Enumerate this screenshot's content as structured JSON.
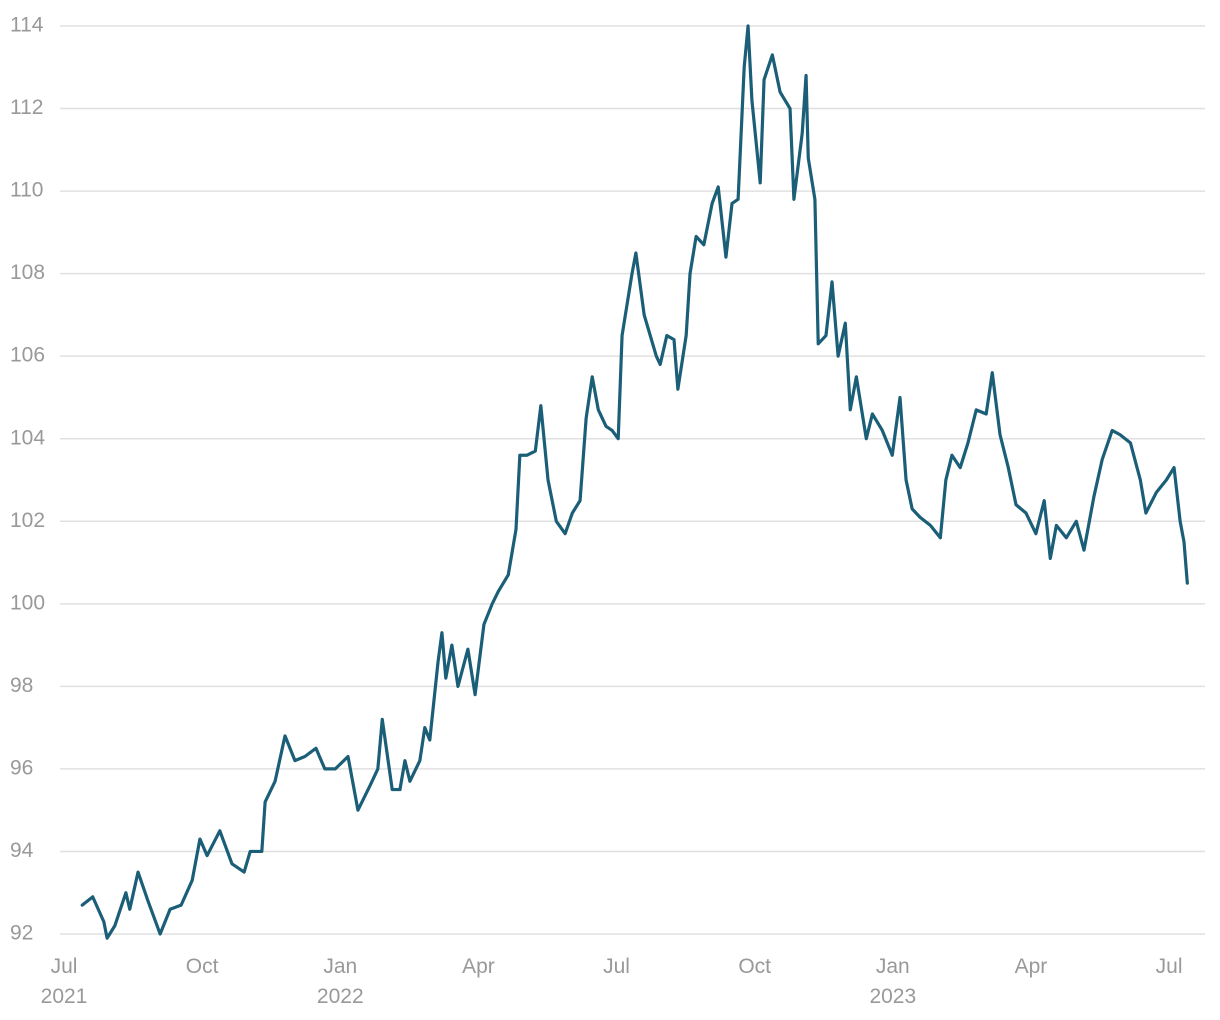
{
  "chart_data": {
    "type": "line",
    "x": [
      2021.533,
      2021.552,
      2021.572,
      2021.578,
      2021.592,
      2021.612,
      2021.619,
      2021.634,
      2021.652,
      2021.674,
      2021.692,
      2021.712,
      2021.732,
      2021.746,
      2021.759,
      2021.782,
      2021.804,
      2021.826,
      2021.837,
      2021.858,
      2021.864,
      2021.882,
      2021.9,
      2021.918,
      2021.936,
      2021.956,
      2021.972,
      2021.991,
      2022.014,
      2022.032,
      2022.054,
      2022.068,
      2022.076,
      2022.094,
      2022.108,
      2022.117,
      2022.126,
      2022.144,
      2022.153,
      2022.162,
      2022.177,
      2022.184,
      2022.191,
      2022.202,
      2022.213,
      2022.231,
      2022.244,
      2022.26,
      2022.275,
      2022.286,
      2022.304,
      2022.318,
      2022.325,
      2022.338,
      2022.353,
      2022.363,
      2022.376,
      2022.391,
      2022.407,
      2022.42,
      2022.434,
      2022.445,
      2022.456,
      2022.467,
      2022.481,
      2022.492,
      2022.503,
      2022.51,
      2022.528,
      2022.535,
      2022.55,
      2022.572,
      2022.579,
      2022.591,
      2022.604,
      2022.611,
      2022.626,
      2022.633,
      2022.644,
      2022.658,
      2022.673,
      2022.684,
      2022.698,
      2022.709,
      2022.72,
      2022.731,
      2022.738,
      2022.745,
      2022.76,
      2022.767,
      2022.782,
      2022.796,
      2022.814,
      2022.821,
      2022.836,
      2022.843,
      2022.847,
      2022.859,
      2022.865,
      2022.879,
      2022.89,
      2022.901,
      2022.914,
      2022.923,
      2022.934,
      2022.952,
      2022.963,
      2022.981,
      2022.999,
      2023.013,
      2023.024,
      2023.035,
      2023.049,
      2023.068,
      2023.086,
      2023.096,
      2023.107,
      2023.122,
      2023.136,
      2023.151,
      2023.169,
      2023.18,
      2023.194,
      2023.209,
      2023.223,
      2023.241,
      2023.259,
      2023.274,
      2023.285,
      2023.296,
      2023.314,
      2023.332,
      2023.346,
      2023.364,
      2023.379,
      2023.397,
      2023.411,
      2023.43,
      2023.448,
      2023.458,
      2023.477,
      2023.495,
      2023.509,
      2023.52,
      2023.527,
      2023.533
    ],
    "values": [
      92.7,
      92.9,
      92.3,
      91.9,
      92.2,
      93.0,
      92.6,
      93.5,
      92.8,
      92.0,
      92.6,
      92.7,
      93.3,
      94.3,
      93.9,
      94.5,
      93.7,
      93.5,
      94.0,
      94.0,
      95.2,
      95.7,
      96.8,
      96.2,
      96.3,
      96.5,
      96.0,
      96.0,
      96.3,
      95.0,
      95.6,
      96.0,
      97.2,
      95.5,
      95.5,
      96.2,
      95.7,
      96.2,
      97.0,
      96.7,
      98.6,
      99.3,
      98.2,
      99.0,
      98.0,
      98.9,
      97.8,
      99.5,
      100.0,
      100.3,
      100.7,
      101.8,
      103.6,
      103.6,
      103.7,
      104.8,
      103.0,
      102.0,
      101.7,
      102.2,
      102.5,
      104.5,
      105.5,
      104.7,
      104.3,
      104.2,
      104.0,
      106.5,
      108.0,
      108.5,
      107.0,
      106.0,
      105.8,
      106.5,
      106.4,
      105.2,
      106.5,
      108.0,
      108.9,
      108.7,
      109.7,
      110.1,
      108.4,
      109.7,
      109.8,
      113.0,
      114.0,
      112.2,
      110.2,
      112.7,
      113.3,
      112.4,
      112.0,
      109.8,
      111.4,
      112.8,
      110.8,
      109.8,
      106.3,
      106.5,
      107.8,
      106.0,
      106.8,
      104.7,
      105.5,
      104.0,
      104.6,
      104.2,
      103.6,
      105.0,
      103.0,
      102.3,
      102.1,
      101.9,
      101.6,
      103.0,
      103.6,
      103.3,
      103.9,
      104.7,
      104.6,
      105.6,
      104.1,
      103.3,
      102.4,
      102.2,
      101.7,
      102.5,
      101.1,
      101.9,
      101.6,
      102.0,
      101.3,
      102.6,
      103.5,
      104.2,
      104.1,
      103.9,
      103.0,
      102.2,
      102.7,
      103.0,
      103.3,
      102.0,
      101.5,
      100.5
    ],
    "color": "#1b5e78",
    "xlim": [
      2021.5,
      2023.565
    ],
    "xticks": [
      {
        "value": 2021.5,
        "label": "Jul\n2021"
      },
      {
        "value": 2021.75,
        "label": "Oct"
      },
      {
        "value": 2022,
        "label": "Jan\n2022"
      },
      {
        "value": 2022.25,
        "label": "Apr"
      },
      {
        "value": 2022.5,
        "label": "Jul"
      },
      {
        "value": 2022.75,
        "label": "Oct"
      },
      {
        "value": 2023,
        "label": "Jan\n2023"
      },
      {
        "value": 2023.25,
        "label": "Apr"
      },
      {
        "value": 2023.5,
        "label": "Jul"
      }
    ],
    "ylim": [
      92,
      114
    ],
    "yticks": [
      92,
      94,
      96,
      98,
      100,
      102,
      104,
      106,
      108,
      110,
      112,
      114
    ],
    "grid": true
  }
}
